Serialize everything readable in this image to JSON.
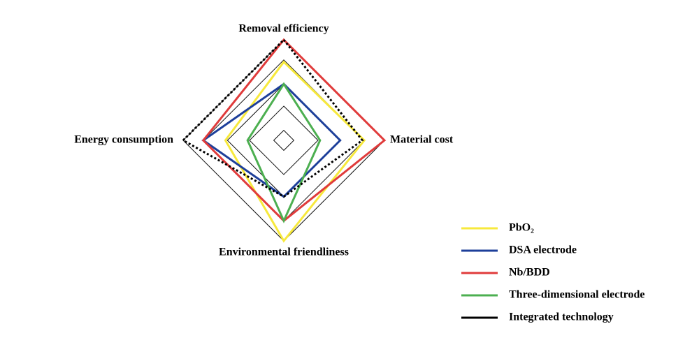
{
  "chart_data": {
    "type": "radar",
    "categories": [
      "Removal efficiency",
      "Material cost",
      "Environmental friendliness",
      "Energy consumption"
    ],
    "rlim": [
      0,
      5
    ],
    "rticks": [
      0.5,
      1.7,
      2.8,
      4,
      5
    ],
    "grid": true,
    "legend": "lower right",
    "series": [
      {
        "name": "PbO₂",
        "color": "#f7e93c",
        "values": [
          3.9,
          4.0,
          5,
          2.9
        ]
      },
      {
        "name": "DSA electrode",
        "color": "#1d3f9a",
        "values": [
          2.8,
          2.8,
          2.8,
          4.0
        ]
      },
      {
        "name": "Nb/BDD",
        "color": "#e03b3b",
        "values": [
          5,
          5,
          4.0,
          4.0
        ]
      },
      {
        "name": "Three-dimensional electrode",
        "color": "#4caf50",
        "values": [
          2.8,
          1.8,
          4.0,
          1.8
        ]
      },
      {
        "name": "Integrated technology",
        "color": "#000000",
        "values": [
          5,
          3.9,
          2.8,
          5
        ],
        "dotted": true
      }
    ]
  }
}
